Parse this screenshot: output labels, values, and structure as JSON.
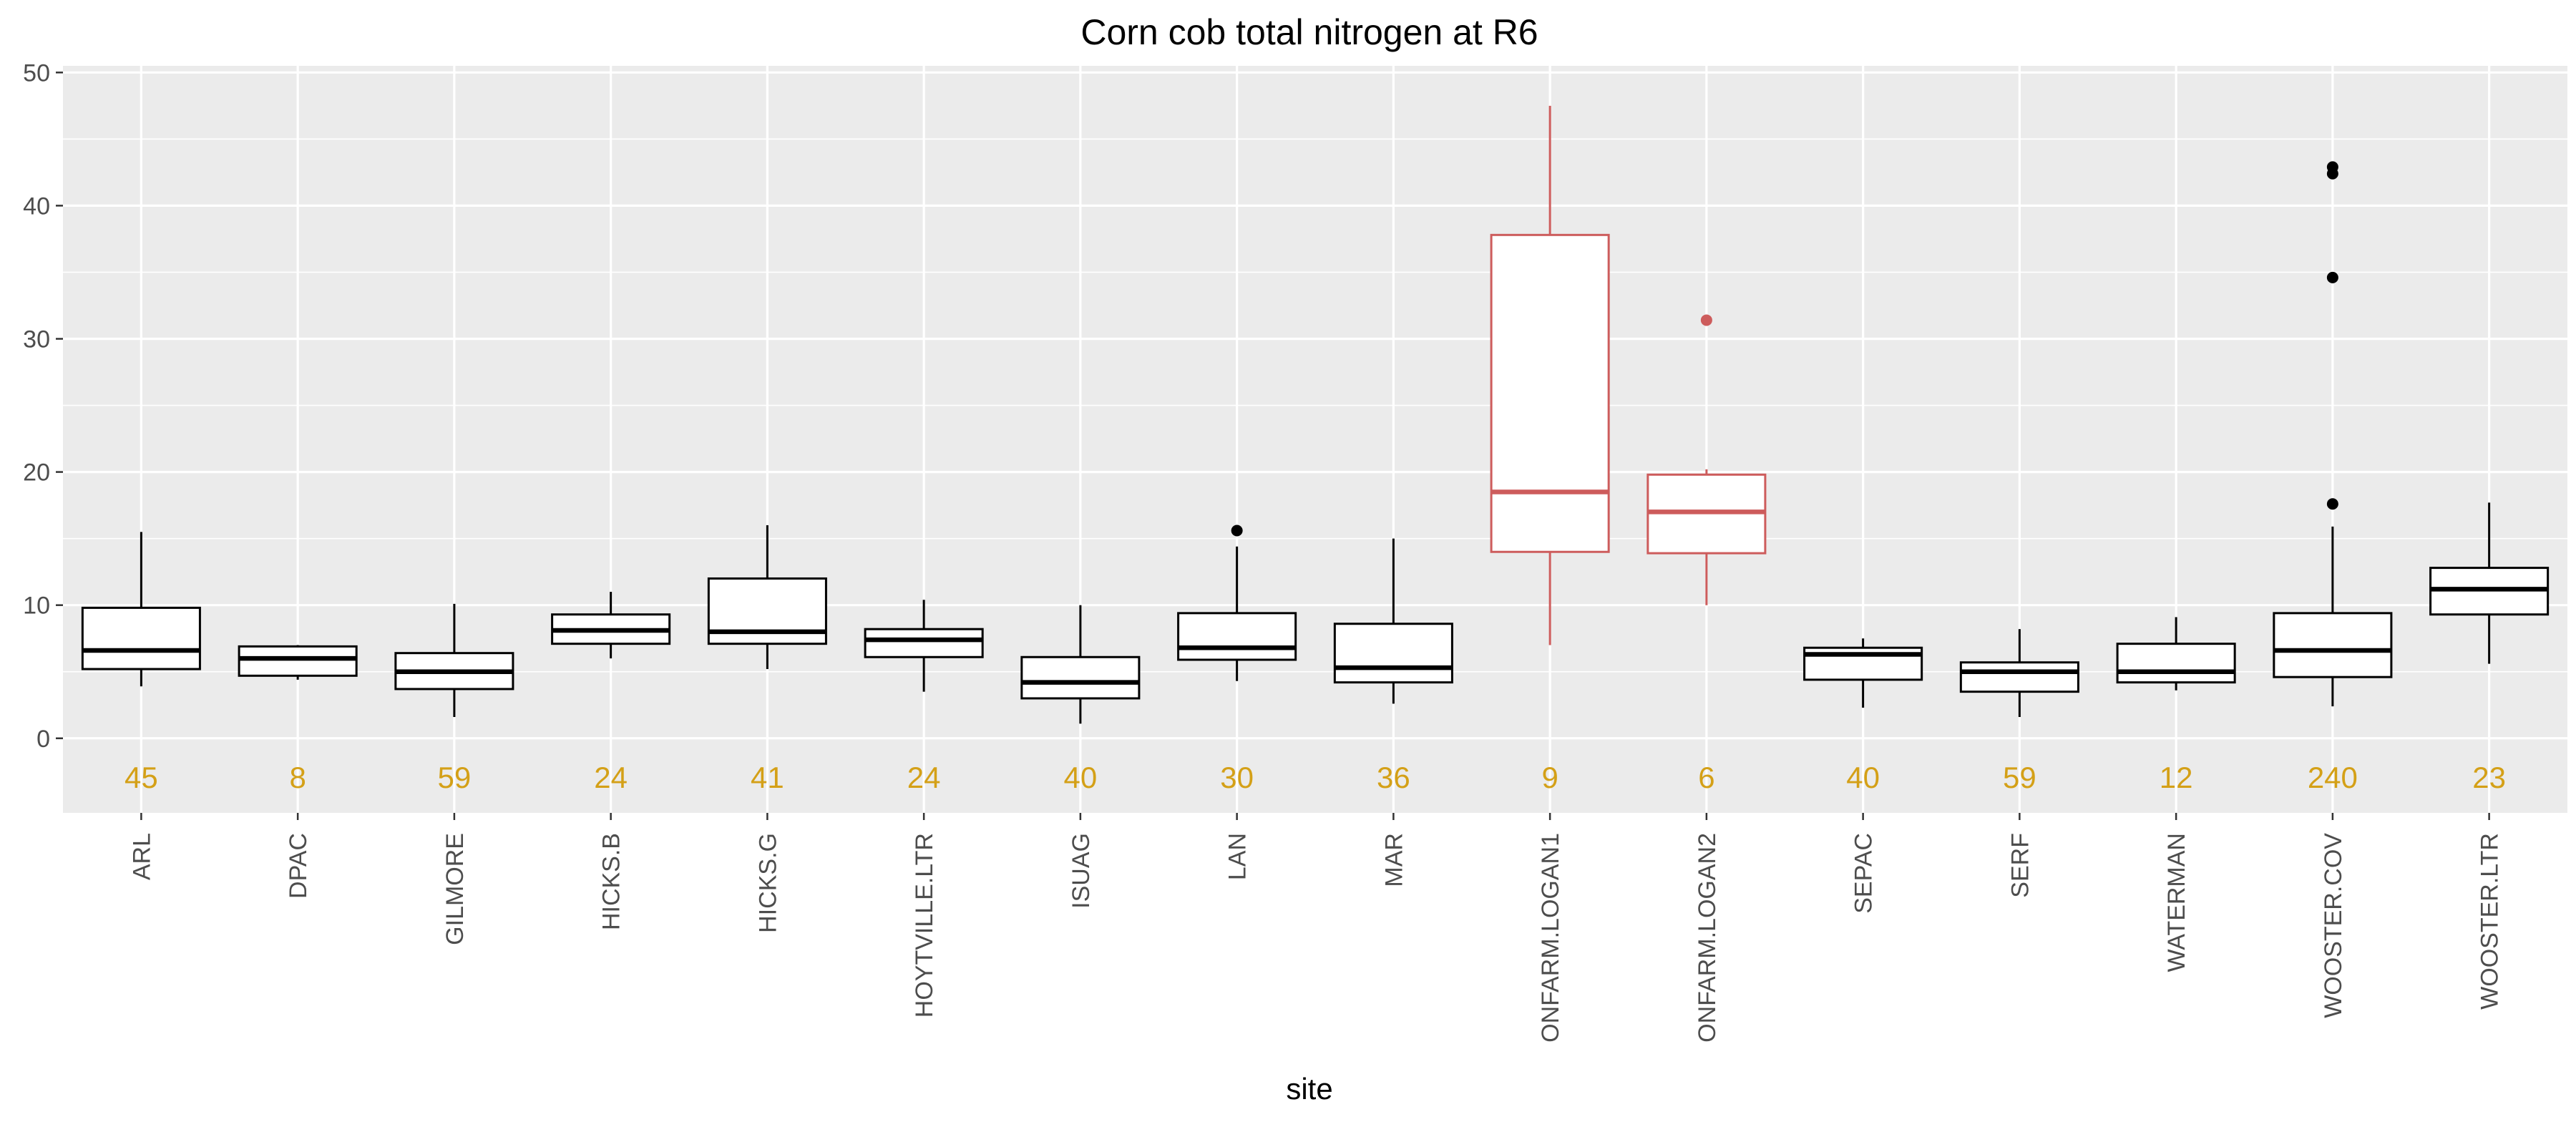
{
  "chart_data": {
    "type": "box",
    "title": "Corn cob total nitrogen at R6",
    "xlabel": "site",
    "ylabel": "",
    "ylim": [
      -5.6,
      50.5
    ],
    "yticks": [
      0,
      10,
      20,
      30,
      40,
      50
    ],
    "grid": true,
    "colors": {
      "panel": "#ebebeb",
      "grid": "#ffffff",
      "normal": "#000000",
      "highlight": "#cd5c5c",
      "count": "#d4a017"
    },
    "categories": [
      "ARL",
      "DPAC",
      "GILMORE",
      "HICKS.B",
      "HICKS.G",
      "HOYTVILLE.LTR",
      "ISUAG",
      "LAN",
      "MAR",
      "ONFARM.LOGAN1",
      "ONFARM.LOGAN2",
      "SEPAC",
      "SERF",
      "WATERMAN",
      "WOOSTER.COV",
      "WOOSTER.LTR"
    ],
    "boxes": [
      {
        "site": "ARL",
        "min": 3.9,
        "q1": 5.2,
        "median": 6.6,
        "q3": 9.8,
        "max": 15.5,
        "outliers": [],
        "n": "45",
        "highlight": false
      },
      {
        "site": "DPAC",
        "min": 4.4,
        "q1": 4.7,
        "median": 6.0,
        "q3": 6.9,
        "max": 7.0,
        "outliers": [],
        "n": "8",
        "highlight": false
      },
      {
        "site": "GILMORE",
        "min": 1.6,
        "q1": 3.7,
        "median": 5.0,
        "q3": 6.4,
        "max": 10.1,
        "outliers": [],
        "n": "59",
        "highlight": false
      },
      {
        "site": "HICKS.B",
        "min": 6.0,
        "q1": 7.1,
        "median": 8.1,
        "q3": 9.3,
        "max": 11.0,
        "outliers": [],
        "n": "24",
        "highlight": false
      },
      {
        "site": "HICKS.G",
        "min": 5.2,
        "q1": 7.1,
        "median": 8.0,
        "q3": 12.0,
        "max": 16.0,
        "outliers": [],
        "n": "41",
        "highlight": false
      },
      {
        "site": "HOYTVILLE.LTR",
        "min": 3.5,
        "q1": 6.1,
        "median": 7.4,
        "q3": 8.2,
        "max": 10.4,
        "outliers": [],
        "n": "24",
        "highlight": false
      },
      {
        "site": "ISUAG",
        "min": 1.1,
        "q1": 3.0,
        "median": 4.2,
        "q3": 6.1,
        "max": 10.0,
        "outliers": [],
        "n": "40",
        "highlight": false
      },
      {
        "site": "LAN",
        "min": 4.3,
        "q1": 5.9,
        "median": 6.8,
        "q3": 9.4,
        "max": 14.4,
        "outliers": [
          15.6
        ],
        "n": "30",
        "highlight": false
      },
      {
        "site": "MAR",
        "min": 2.6,
        "q1": 4.2,
        "median": 5.3,
        "q3": 8.6,
        "max": 15.0,
        "outliers": [],
        "n": "36",
        "highlight": false
      },
      {
        "site": "ONFARM.LOGAN1",
        "min": 7.0,
        "q1": 14.0,
        "median": 18.5,
        "q3": 37.8,
        "max": 47.5,
        "outliers": [],
        "n": "9",
        "highlight": true
      },
      {
        "site": "ONFARM.LOGAN2",
        "min": 10.0,
        "q1": 13.9,
        "median": 17.0,
        "q3": 19.8,
        "max": 20.2,
        "outliers": [
          31.4
        ],
        "n": "6",
        "highlight": true
      },
      {
        "site": "SEPAC",
        "min": 2.3,
        "q1": 4.4,
        "median": 6.3,
        "q3": 6.8,
        "max": 7.5,
        "outliers": [],
        "n": "40",
        "highlight": false
      },
      {
        "site": "SERF",
        "min": 1.6,
        "q1": 3.5,
        "median": 5.0,
        "q3": 5.7,
        "max": 8.2,
        "outliers": [],
        "n": "59",
        "highlight": false
      },
      {
        "site": "WATERMAN",
        "min": 3.6,
        "q1": 4.2,
        "median": 5.0,
        "q3": 7.1,
        "max": 9.1,
        "outliers": [],
        "n": "12",
        "highlight": false
      },
      {
        "site": "WOOSTER.COV",
        "min": 2.4,
        "q1": 4.6,
        "median": 6.6,
        "q3": 9.4,
        "max": 15.9,
        "outliers": [
          17.6,
          34.6,
          42.4,
          42.9
        ],
        "n": "240",
        "highlight": false
      },
      {
        "site": "WOOSTER.LTR",
        "min": 5.6,
        "q1": 9.3,
        "median": 11.2,
        "q3": 12.8,
        "max": 17.7,
        "outliers": [],
        "n": "23",
        "highlight": false
      }
    ]
  }
}
